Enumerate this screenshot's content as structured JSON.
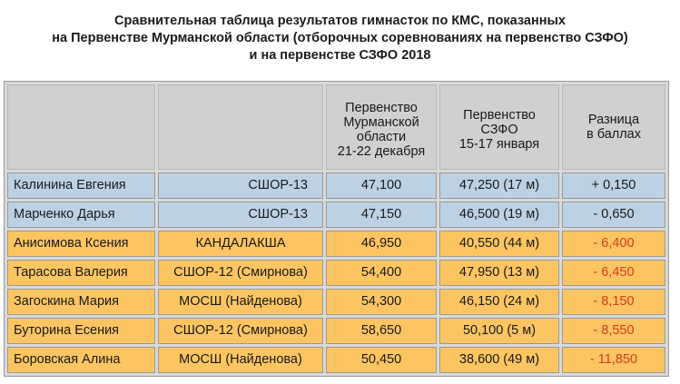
{
  "title": {
    "line1": "Сравнительная таблица результатов гимнасток по КМС, показанных",
    "line2": "на Первенстве Мурманской области (отборочных соревнованиях на первенство СЗФО)",
    "line3": "и на первенстве СЗФО 2018"
  },
  "header": {
    "event1": [
      "Первенство",
      "Мурманской",
      "области",
      "21-22 декабря"
    ],
    "event2": [
      "Первенство",
      "СЗФО",
      "15-17 января"
    ],
    "diff": [
      "Разница",
      "в баллах"
    ]
  },
  "rows": [
    {
      "name": "Калинина Евгения",
      "club": "СШОР-13",
      "event1": "47,100",
      "event2": "47,250 (17 м)",
      "diff": "+ 0,150",
      "color": "#bcd1e4",
      "diff_negative": false
    },
    {
      "name": "Марченко Дарья",
      "club": "СШОР-13",
      "event1": "47,150",
      "event2": "46,500 (19 м)",
      "diff": "- 0,650",
      "color": "#bcd1e4",
      "diff_negative": false
    },
    {
      "name": "Анисимова Ксения",
      "club": "КАНДАЛАКША",
      "event1": "46,950",
      "event2": "40,550 (44 м)",
      "diff": "- 6,400",
      "color": "#fcc562",
      "diff_negative": true
    },
    {
      "name": "Тарасова Валерия",
      "club": "СШОР-12 (Смирнова)",
      "event1": "54,400",
      "event2": "47,950 (13 м)",
      "diff": "- 6,450",
      "color": "#fcc562",
      "diff_negative": true
    },
    {
      "name": "Загоскина Мария",
      "club": "МОСШ (Найденова)",
      "event1": "54,300",
      "event2": "46,150 (24 м)",
      "diff": "- 8,150",
      "color": "#fcc562",
      "diff_negative": true
    },
    {
      "name": "Буторина Есения",
      "club": "СШОР-12 (Смирнова)",
      "event1": "58,650",
      "event2": "50,100 (5 м)",
      "diff": "- 8,550",
      "color": "#fcc562",
      "diff_negative": true
    },
    {
      "name": "Боровская Алина",
      "club": "МОСШ (Найденова)",
      "event1": "50,450",
      "event2": "38,600 (49 м)",
      "diff": "- 11,850",
      "color": "#fcc562",
      "diff_negative": true
    }
  ],
  "colors": {
    "row_blue": "#bcd1e4",
    "row_orange": "#fcc562",
    "header_bg": "#d0d0d0",
    "negative_text": "#d43a1e"
  }
}
